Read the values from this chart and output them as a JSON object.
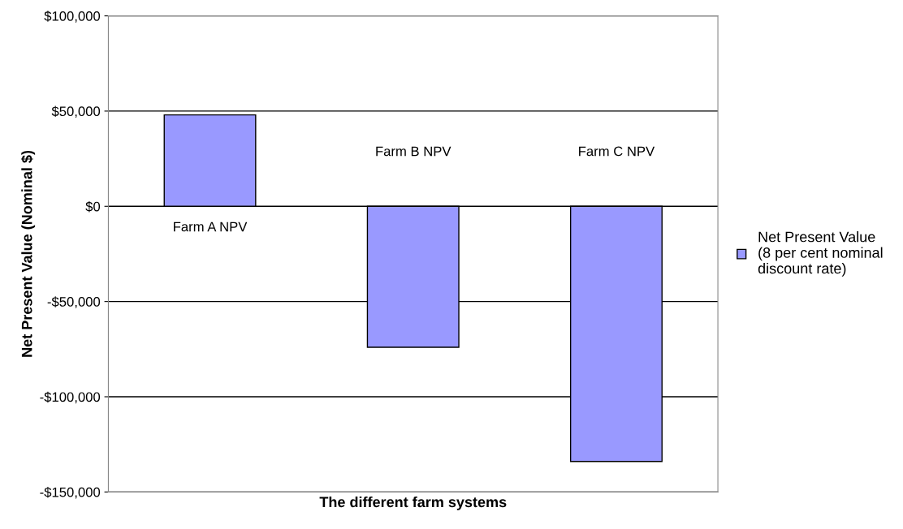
{
  "chart_data": {
    "type": "bar",
    "xlabel": "The different farm systems",
    "ylabel": "Net Present Value (Nominal $)",
    "categories": [
      "Farm A NPV",
      "Farm B NPV",
      "Farm C NPV"
    ],
    "series": [
      {
        "name": "Net Present Value (8 per cent nominal discount rate)",
        "color": "#9999ff",
        "values": [
          48000,
          -74000,
          -134000
        ]
      }
    ],
    "ylim": [
      -150000,
      100000
    ],
    "yticks": [
      {
        "value": -150000,
        "label": "-$150,000"
      },
      {
        "value": -100000,
        "label": "-$100,000"
      },
      {
        "value": -50000,
        "label": "-$50,000"
      },
      {
        "value": 0,
        "label": "$0"
      },
      {
        "value": 50000,
        "label": "$50,000"
      },
      {
        "value": 100000,
        "label": "$100,000"
      }
    ],
    "grid": "y",
    "legend": "right"
  }
}
